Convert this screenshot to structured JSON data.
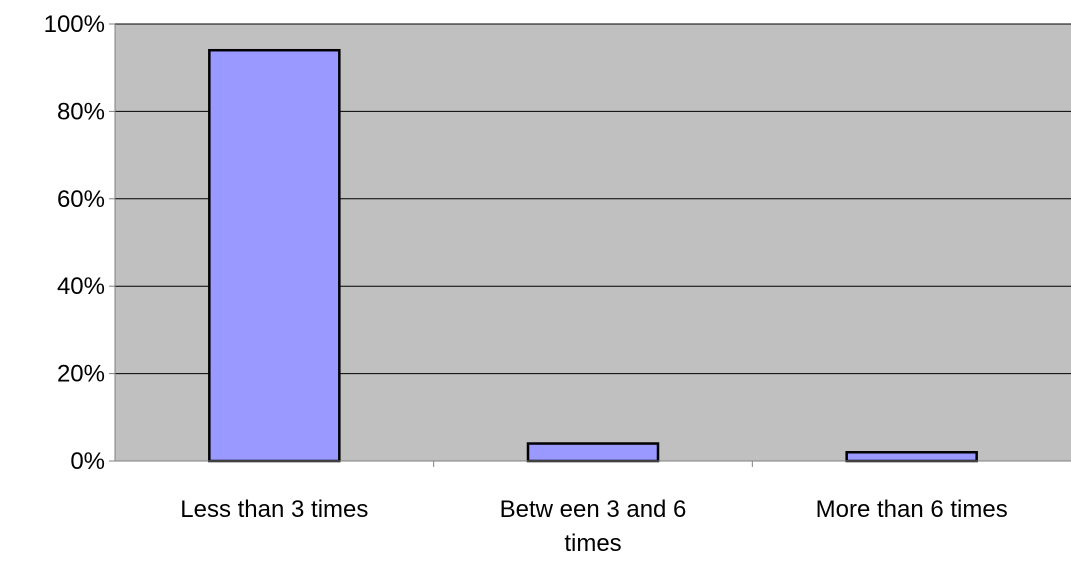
{
  "chart_data": {
    "type": "bar",
    "title": "",
    "xlabel": "",
    "ylabel": "",
    "categories": [
      "Less than 3 times",
      "Between 3 and 6 times",
      "More than 6 times"
    ],
    "category_label_lines": [
      [
        "Less than 3 times"
      ],
      [
        "Betw een 3 and 6",
        "times"
      ],
      [
        "More than 6 times"
      ]
    ],
    "values": [
      0.94,
      0.04,
      0.02
    ],
    "ylim": [
      0,
      1
    ],
    "yticks": [
      0,
      0.2,
      0.4,
      0.6,
      0.8,
      1.0
    ],
    "ytick_labels": [
      "0%",
      "20%",
      "40%",
      "60%",
      "80%",
      "100%"
    ],
    "grid": true,
    "legend": "none",
    "colors": {
      "plot_background": "#c0c0c0",
      "bar_fill": "#9999ff",
      "bar_stroke": "#000000",
      "grid": "#000000",
      "axis": "#808080"
    }
  }
}
